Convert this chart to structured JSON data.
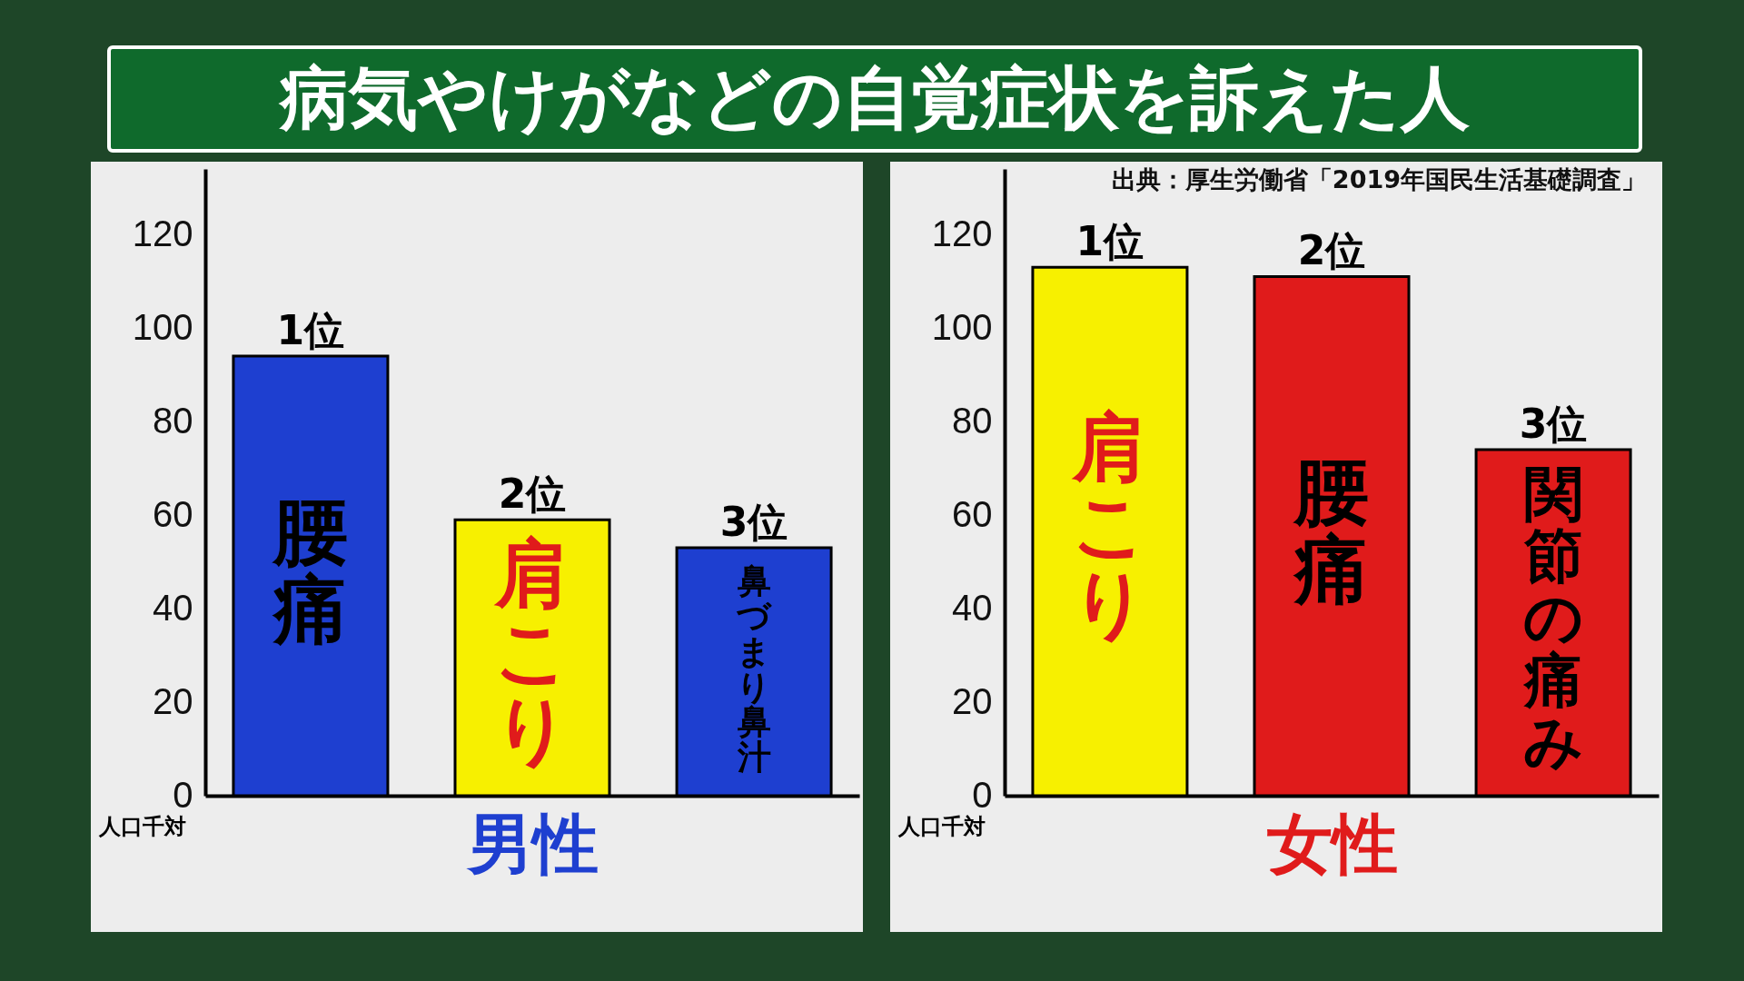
{
  "chart_data": [
    {
      "type": "bar",
      "title": "病気やけがなどの自覚症状を訴えた人",
      "xlabel": "男性",
      "ylabel": "人口千対",
      "categories": [
        "腰痛",
        "肩こり",
        "鼻づまり鼻汁"
      ],
      "values": [
        94,
        59,
        53
      ],
      "colors": [
        "#1e3fd0",
        "#f7f000",
        "#1e3fd0"
      ],
      "ylim": [
        0,
        134
      ],
      "yticks": [
        0,
        20,
        40,
        60,
        80,
        100,
        120
      ],
      "grid": false,
      "tick_labels": "y",
      "annotations": [
        {
          "text": "1位",
          "x": "腰痛",
          "y": 94
        },
        {
          "text": "2位",
          "x": "肩こり",
          "y": 59
        },
        {
          "text": "3位",
          "x": "鼻づまり鼻汁",
          "y": 53
        }
      ]
    },
    {
      "type": "bar",
      "xlabel": "女性",
      "ylabel": "人口千対",
      "categories": [
        "肩こり",
        "腰痛",
        "関節の痛み"
      ],
      "values": [
        113,
        111,
        74
      ],
      "colors": [
        "#f7f000",
        "#e01b1b",
        "#e01b1b"
      ],
      "ylim": [
        0,
        134
      ],
      "yticks": [
        0,
        20,
        40,
        60,
        80,
        100,
        120
      ],
      "grid": false,
      "tick_labels": "y",
      "annotations": [
        "出典：厚生労働省「2019年国民生活基礎調査」",
        {
          "text": "1位",
          "x": "肩こり",
          "y": 113
        },
        {
          "text": "2位",
          "x": "腰痛",
          "y": 111
        },
        {
          "text": "3位",
          "x": "関節の痛み",
          "y": 74
        }
      ]
    }
  ]
}
